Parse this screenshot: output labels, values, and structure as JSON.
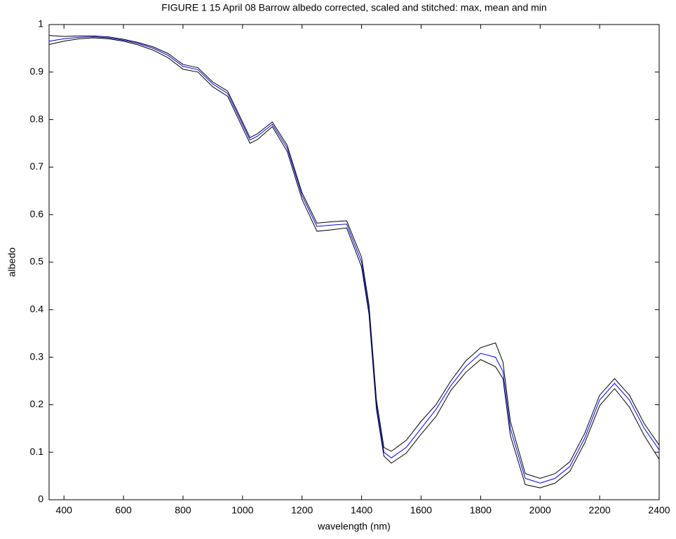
{
  "chart_data": {
    "type": "line",
    "title": "FIGURE 1  15 April 08 Barrow  albedo corrected, scaled and stitched: max, mean and min",
    "xlabel": "wavelength (nm)",
    "ylabel": "albedo",
    "x": [
      350,
      400,
      450,
      500,
      550,
      600,
      650,
      700,
      750,
      800,
      850,
      900,
      950,
      1000,
      1025,
      1050,
      1100,
      1150,
      1200,
      1250,
      1300,
      1350,
      1400,
      1425,
      1450,
      1475,
      1500,
      1550,
      1600,
      1650,
      1700,
      1750,
      1800,
      1850,
      1875,
      1900,
      1950,
      2000,
      2050,
      2100,
      2150,
      2200,
      2250,
      2300,
      2350,
      2400
    ],
    "series": [
      {
        "color": "#000000",
        "values": [
          0.977,
          0.975,
          0.976,
          0.976,
          0.974,
          0.969,
          0.962,
          0.953,
          0.939,
          0.916,
          0.909,
          0.879,
          0.86,
          0.795,
          0.762,
          0.77,
          0.795,
          0.746,
          0.646,
          0.582,
          0.585,
          0.587,
          0.51,
          0.41,
          0.21,
          0.11,
          0.102,
          0.125,
          0.165,
          0.2,
          0.25,
          0.292,
          0.32,
          0.33,
          0.29,
          0.165,
          0.055,
          0.045,
          0.055,
          0.08,
          0.14,
          0.22,
          0.255,
          0.22,
          0.16,
          0.115
        ]
      },
      {
        "color": "#0000ff",
        "values": [
          0.965,
          0.97,
          0.973,
          0.974,
          0.972,
          0.967,
          0.96,
          0.95,
          0.935,
          0.912,
          0.905,
          0.875,
          0.855,
          0.79,
          0.757,
          0.765,
          0.79,
          0.74,
          0.64,
          0.575,
          0.578,
          0.58,
          0.5,
          0.4,
          0.2,
          0.1,
          0.088,
          0.11,
          0.15,
          0.19,
          0.24,
          0.28,
          0.308,
          0.3,
          0.27,
          0.15,
          0.045,
          0.035,
          0.045,
          0.07,
          0.13,
          0.21,
          0.245,
          0.21,
          0.15,
          0.105
        ]
      },
      {
        "color": "#000000",
        "values": [
          0.958,
          0.965,
          0.97,
          0.972,
          0.97,
          0.965,
          0.957,
          0.946,
          0.93,
          0.906,
          0.9,
          0.869,
          0.849,
          0.783,
          0.75,
          0.758,
          0.785,
          0.733,
          0.632,
          0.565,
          0.568,
          0.572,
          0.49,
          0.39,
          0.19,
          0.092,
          0.077,
          0.098,
          0.138,
          0.175,
          0.23,
          0.268,
          0.295,
          0.28,
          0.255,
          0.135,
          0.032,
          0.025,
          0.035,
          0.06,
          0.12,
          0.198,
          0.234,
          0.195,
          0.135,
          0.085
        ]
      }
    ],
    "xlim": [
      350,
      2400
    ],
    "xticks": [
      400,
      600,
      800,
      1000,
      1200,
      1400,
      1600,
      1800,
      2000,
      2200,
      2400
    ],
    "ylim": [
      0,
      1
    ],
    "yticks": [
      0,
      0.1,
      0.2,
      0.3,
      0.4,
      0.5,
      0.6,
      0.7,
      0.8,
      0.9,
      1
    ],
    "grid": false
  }
}
